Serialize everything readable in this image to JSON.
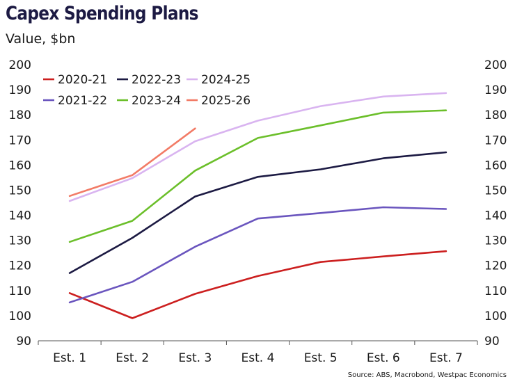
{
  "title": "Capex Spending Plans",
  "subtitle": "Value, $bn",
  "source": "Source: ABS, Macrobond, Westpac Economics",
  "chart_data": {
    "type": "line",
    "title": "Capex Spending Plans",
    "subtitle": "Value, $bn",
    "xlabel": "",
    "ylabel": "",
    "categories": [
      "Est. 1",
      "Est. 2",
      "Est. 3",
      "Est. 4",
      "Est. 5",
      "Est. 6",
      "Est. 7"
    ],
    "ylim": [
      90,
      200
    ],
    "yticks": [
      90,
      100,
      110,
      120,
      130,
      140,
      150,
      160,
      170,
      180,
      190,
      200
    ],
    "grid": false,
    "legend_position": "top-left",
    "series": [
      {
        "name": "2020-21",
        "color": "#cc1f1f",
        "values": [
          109,
          99,
          108.7,
          115.8,
          121.4,
          123.6,
          125.7
        ]
      },
      {
        "name": "2022-23",
        "color": "#1c1a43",
        "values": [
          117,
          131,
          147.5,
          155.3,
          158.3,
          162.7,
          165.1
        ]
      },
      {
        "name": "2024-25",
        "color": "#d9b4f0",
        "values": [
          145.7,
          154.8,
          169.5,
          177.7,
          183.5,
          187.3,
          188.7
        ]
      },
      {
        "name": "2021-22",
        "color": "#6a55be",
        "values": [
          105.3,
          113.5,
          127.5,
          138.7,
          140.9,
          143.2,
          142.5
        ]
      },
      {
        "name": "2023-24",
        "color": "#6bbf2a",
        "values": [
          129.4,
          137.8,
          157.8,
          170.8,
          175.8,
          180.9,
          181.8
        ]
      },
      {
        "name": "2025-26",
        "color": "#f27b66",
        "values": [
          147.7,
          156,
          174.6,
          null,
          null,
          null,
          null
        ]
      }
    ]
  }
}
